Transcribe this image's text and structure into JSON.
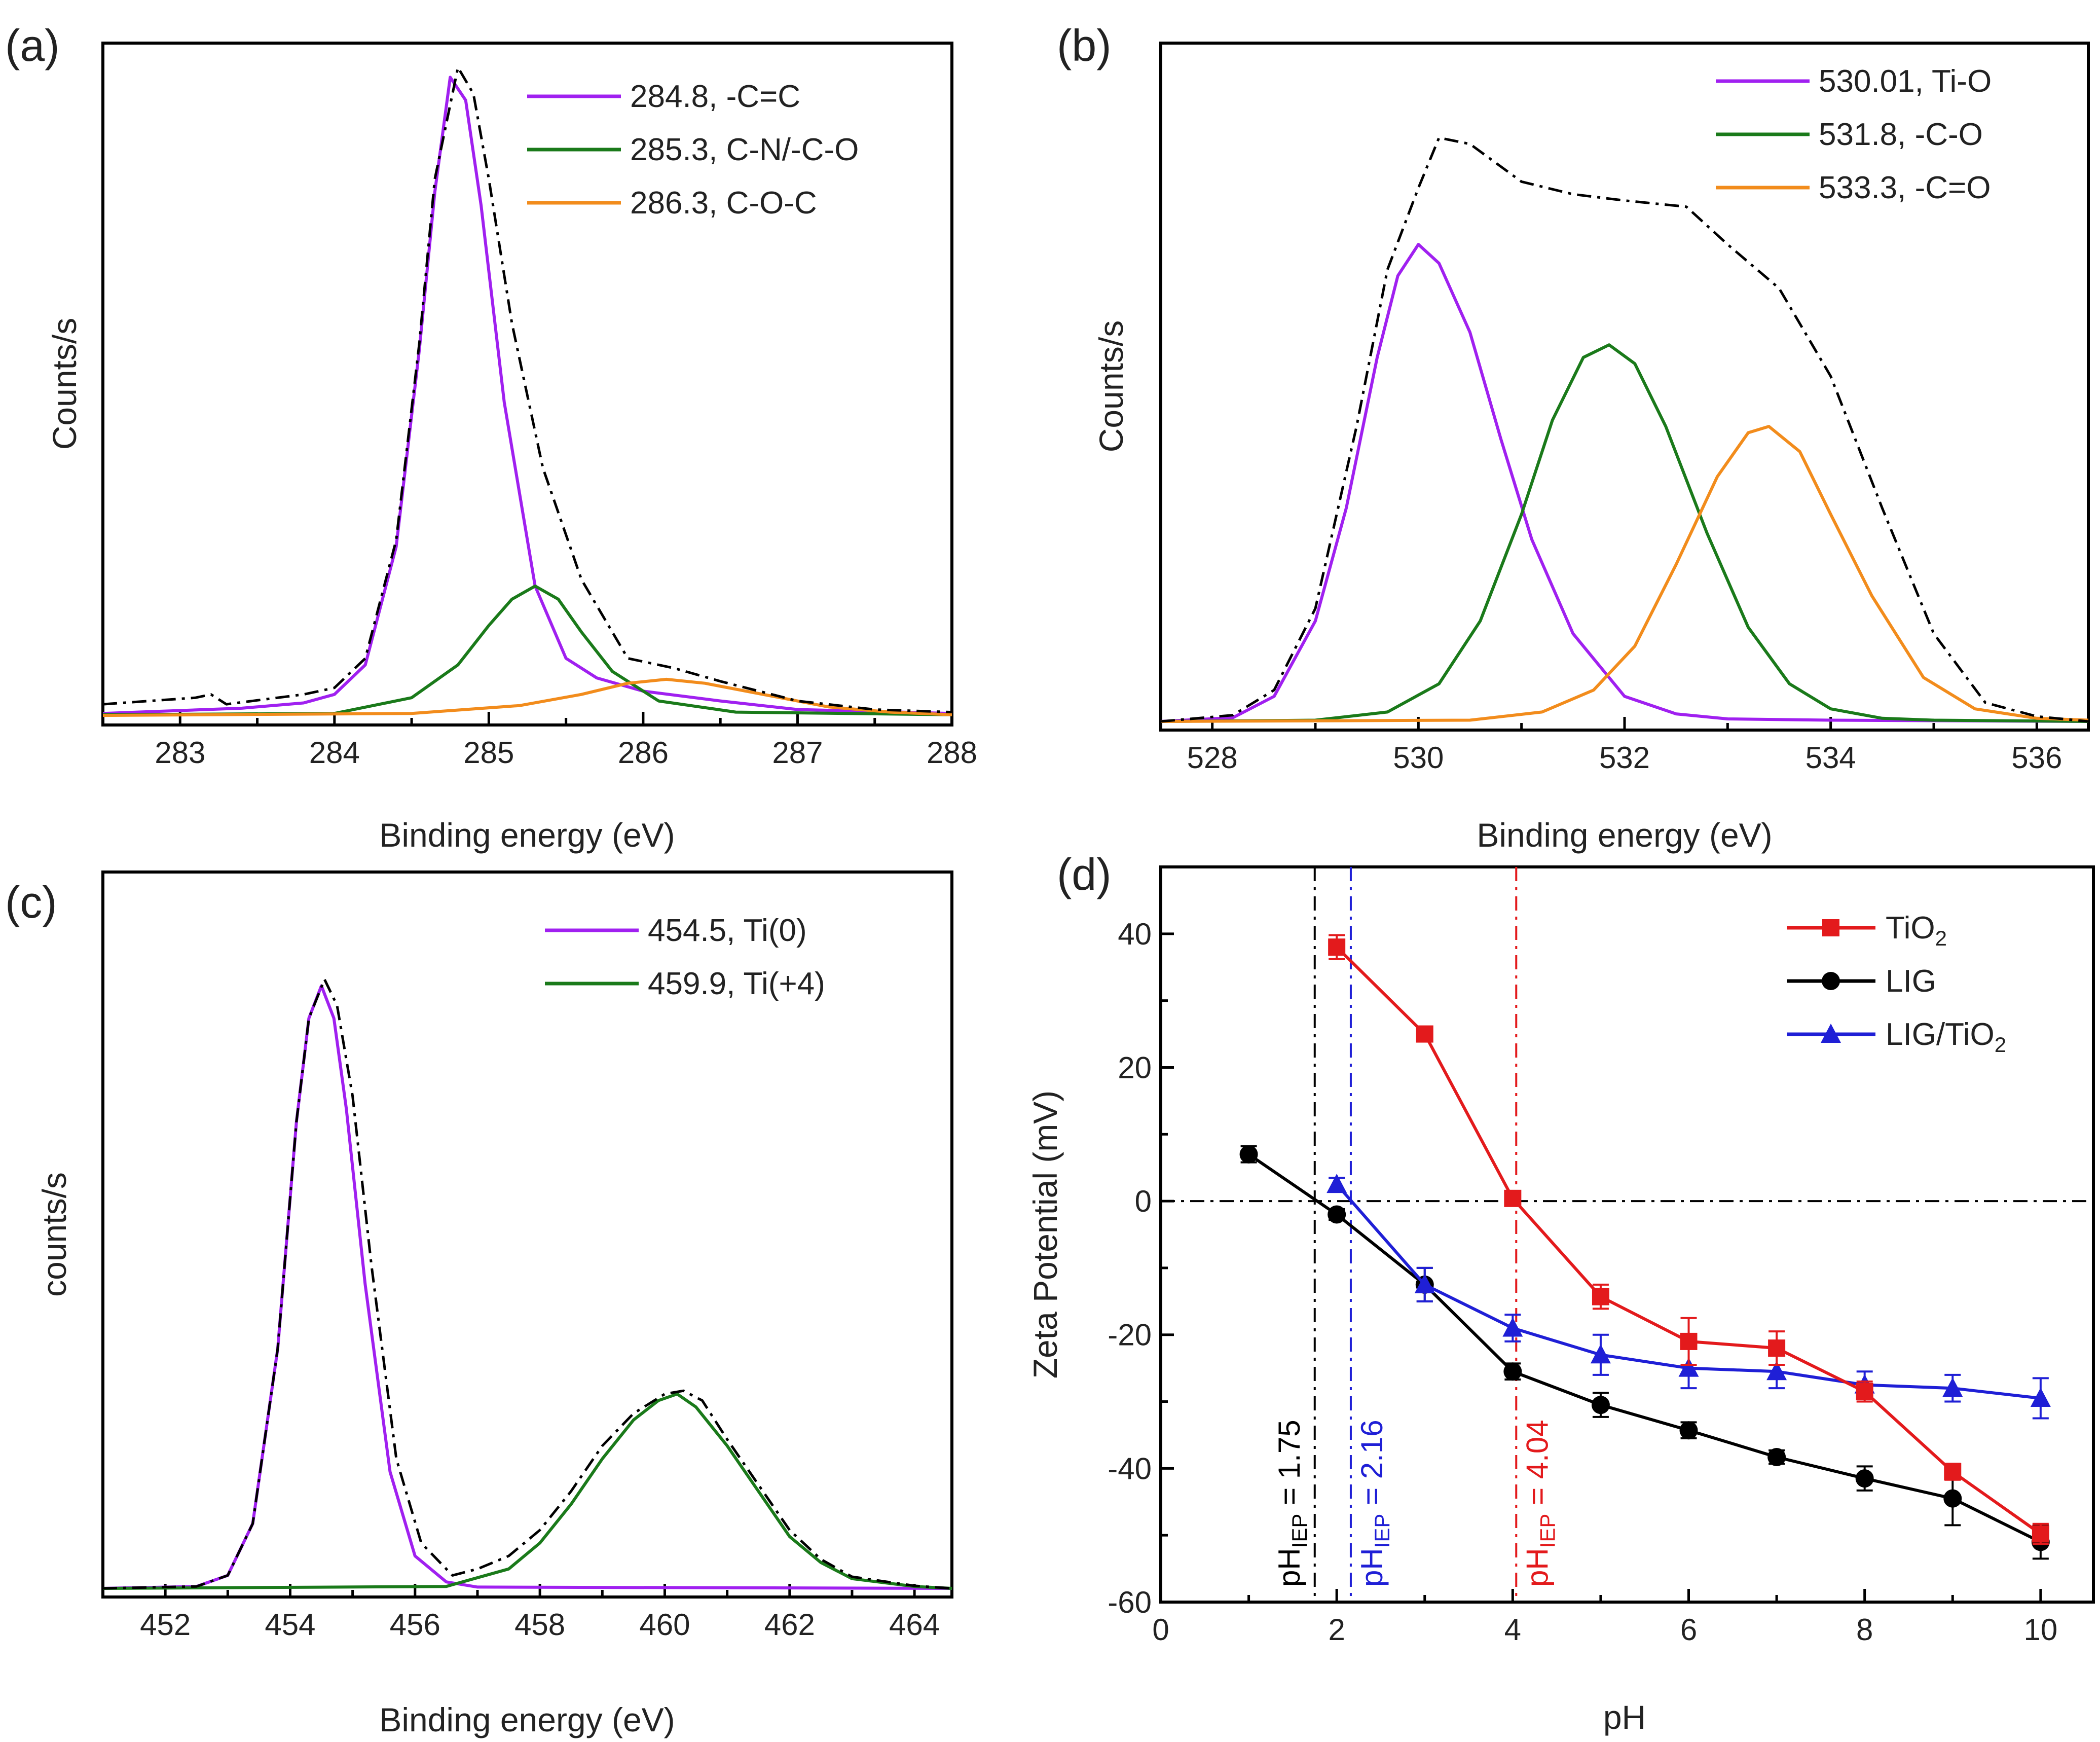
{
  "chart_data": [
    {
      "panel_label": "(a)",
      "type": "line",
      "xlabel": "Binding energy (eV)",
      "ylabel": "Counts/s",
      "xlim": [
        282.5,
        288
      ],
      "xticks": [
        283,
        284,
        285,
        286,
        287,
        288
      ],
      "ylim": [
        0,
        1
      ],
      "show_y_ticks": false,
      "legend_position": "top-right",
      "series": [
        {
          "name": "284.8, -C=C",
          "color": "#a020f0",
          "style": "solid",
          "legend": true,
          "x": [
            282.5,
            283.4,
            283.8,
            284.0,
            284.2,
            284.4,
            284.55,
            284.65,
            284.75,
            284.85,
            284.95,
            285.1,
            285.3,
            285.5,
            285.7,
            286.0,
            286.5,
            287.0,
            288.0
          ],
          "y": [
            0.006,
            0.014,
            0.022,
            0.035,
            0.08,
            0.26,
            0.56,
            0.8,
            0.975,
            0.94,
            0.78,
            0.48,
            0.2,
            0.09,
            0.06,
            0.04,
            0.025,
            0.012,
            0.006
          ]
        },
        {
          "name": "285.3, C-N/-C-O",
          "color": "#1a7a1a",
          "style": "solid",
          "legend": true,
          "x": [
            282.5,
            284.0,
            284.5,
            284.8,
            285.0,
            285.15,
            285.3,
            285.45,
            285.6,
            285.8,
            286.1,
            286.6,
            288.0
          ],
          "y": [
            0.004,
            0.006,
            0.03,
            0.08,
            0.14,
            0.18,
            0.2,
            0.18,
            0.13,
            0.07,
            0.025,
            0.008,
            0.004
          ]
        },
        {
          "name": "286.3, C-O-C",
          "color": "#f28c1c",
          "style": "solid",
          "legend": true,
          "x": [
            282.5,
            284.5,
            285.2,
            285.6,
            285.9,
            286.15,
            286.4,
            286.8,
            287.2,
            287.6,
            288.0
          ],
          "y": [
            0.003,
            0.006,
            0.018,
            0.035,
            0.052,
            0.058,
            0.052,
            0.034,
            0.016,
            0.008,
            0.004
          ]
        },
        {
          "name": "envelope",
          "color": "#000000",
          "style": "dashdot",
          "legend": false,
          "x": [
            282.5,
            283.1,
            283.2,
            283.3,
            283.8,
            284.0,
            284.2,
            284.4,
            284.55,
            284.65,
            284.8,
            284.9,
            285.0,
            285.15,
            285.35,
            285.6,
            285.9,
            286.2,
            286.5,
            287.0,
            287.5,
            288.0
          ],
          "y": [
            0.02,
            0.03,
            0.035,
            0.02,
            0.035,
            0.045,
            0.09,
            0.27,
            0.57,
            0.82,
            0.99,
            0.95,
            0.82,
            0.6,
            0.38,
            0.21,
            0.09,
            0.075,
            0.055,
            0.025,
            0.012,
            0.008
          ]
        }
      ]
    },
    {
      "panel_label": "(b)",
      "type": "line",
      "xlabel": "Binding energy (eV)",
      "ylabel": "Counts/s",
      "xlim": [
        527.5,
        536.5
      ],
      "xticks": [
        528,
        530,
        532,
        534,
        536
      ],
      "ylim": [
        0,
        1
      ],
      "show_y_ticks": false,
      "legend_position": "top-right",
      "series": [
        {
          "name": "530.01, Ti-O",
          "color": "#a020f0",
          "style": "solid",
          "legend": true,
          "x": [
            527.5,
            528.2,
            528.6,
            529.0,
            529.3,
            529.6,
            529.8,
            530.0,
            530.2,
            530.5,
            530.8,
            531.1,
            531.5,
            532.0,
            532.5,
            533.0,
            534.0,
            536.5
          ],
          "y": [
            0.0,
            0.006,
            0.04,
            0.16,
            0.34,
            0.58,
            0.71,
            0.76,
            0.73,
            0.62,
            0.45,
            0.29,
            0.14,
            0.04,
            0.012,
            0.004,
            0.002,
            0.0
          ]
        },
        {
          "name": "531.8, -C-O",
          "color": "#1a7a1a",
          "style": "solid",
          "legend": true,
          "x": [
            527.5,
            529.0,
            529.7,
            530.2,
            530.6,
            531.0,
            531.3,
            531.6,
            531.85,
            532.1,
            532.4,
            532.8,
            533.2,
            533.6,
            534.0,
            534.5,
            535.0,
            536.5
          ],
          "y": [
            0.0,
            0.002,
            0.015,
            0.06,
            0.16,
            0.33,
            0.48,
            0.58,
            0.6,
            0.57,
            0.47,
            0.3,
            0.15,
            0.06,
            0.02,
            0.005,
            0.002,
            0.0
          ]
        },
        {
          "name": "533.3, -C=O",
          "color": "#f28c1c",
          "style": "solid",
          "legend": true,
          "x": [
            527.5,
            530.5,
            531.2,
            531.7,
            532.1,
            532.5,
            532.9,
            533.2,
            533.4,
            533.7,
            534.0,
            534.4,
            534.9,
            535.4,
            536.0,
            536.5
          ],
          "y": [
            0.0,
            0.002,
            0.015,
            0.05,
            0.12,
            0.25,
            0.39,
            0.46,
            0.47,
            0.43,
            0.33,
            0.2,
            0.07,
            0.02,
            0.005,
            0.002
          ]
        },
        {
          "name": "envelope",
          "color": "#000000",
          "style": "dashdot",
          "legend": false,
          "x": [
            527.5,
            528.2,
            528.6,
            529.0,
            529.4,
            529.7,
            530.0,
            530.2,
            530.5,
            531.0,
            531.5,
            532.0,
            532.6,
            533.0,
            533.5,
            534.0,
            534.5,
            535.0,
            535.5,
            536.0,
            536.5
          ],
          "y": [
            0.0,
            0.01,
            0.05,
            0.18,
            0.47,
            0.72,
            0.85,
            0.93,
            0.92,
            0.86,
            0.84,
            0.83,
            0.82,
            0.76,
            0.69,
            0.55,
            0.34,
            0.14,
            0.03,
            0.008,
            0.0
          ]
        }
      ]
    },
    {
      "panel_label": "(c)",
      "type": "line",
      "xlabel": "Binding energy (eV)",
      "ylabel": "counts/s",
      "xlim": [
        451,
        464.6
      ],
      "xticks": [
        452,
        454,
        456,
        458,
        460,
        462,
        464
      ],
      "ylim": [
        0,
        1
      ],
      "show_y_ticks": false,
      "legend_position": "top-right",
      "series": [
        {
          "name": "454.5, Ti(0)",
          "color": "#a020f0",
          "style": "solid",
          "legend": true,
          "x": [
            451.0,
            452.5,
            453.0,
            453.4,
            453.8,
            454.1,
            454.3,
            454.5,
            454.7,
            454.9,
            455.2,
            455.6,
            456.0,
            456.5,
            457.0,
            464.6
          ],
          "y": [
            0.0,
            0.003,
            0.02,
            0.1,
            0.37,
            0.72,
            0.88,
            0.93,
            0.88,
            0.74,
            0.47,
            0.18,
            0.05,
            0.01,
            0.002,
            0.0
          ]
        },
        {
          "name": "459.9, Ti(+4)",
          "color": "#1a7a1a",
          "style": "solid",
          "legend": true,
          "x": [
            451.0,
            456.5,
            457.5,
            458.0,
            458.5,
            459.0,
            459.5,
            459.9,
            460.2,
            460.5,
            461.0,
            461.5,
            462.0,
            462.5,
            463.0,
            464.0,
            464.6
          ],
          "y": [
            0.0,
            0.003,
            0.03,
            0.07,
            0.13,
            0.2,
            0.26,
            0.29,
            0.3,
            0.28,
            0.22,
            0.15,
            0.08,
            0.04,
            0.015,
            0.003,
            0.0
          ]
        },
        {
          "name": "envelope",
          "color": "#000000",
          "style": "dashdot",
          "legend": false,
          "x": [
            451.0,
            452.5,
            453.0,
            453.4,
            453.8,
            454.1,
            454.3,
            454.55,
            454.75,
            455.0,
            455.3,
            455.7,
            456.1,
            456.6,
            457.0,
            457.5,
            458.0,
            458.5,
            459.0,
            459.5,
            460.0,
            460.3,
            460.6,
            461.0,
            461.5,
            462.0,
            462.5,
            463.0,
            464.0,
            464.6
          ],
          "y": [
            0.0,
            0.003,
            0.02,
            0.1,
            0.37,
            0.72,
            0.88,
            0.94,
            0.9,
            0.76,
            0.5,
            0.2,
            0.07,
            0.02,
            0.03,
            0.05,
            0.09,
            0.15,
            0.22,
            0.27,
            0.3,
            0.305,
            0.29,
            0.23,
            0.16,
            0.09,
            0.045,
            0.018,
            0.004,
            0.0
          ]
        }
      ]
    },
    {
      "panel_label": "(d)",
      "type": "line",
      "xlabel": "pH",
      "ylabel": "Zeta Potential (mV)",
      "xlim": [
        0,
        10.6
      ],
      "xticks": [
        0,
        2,
        4,
        6,
        8,
        10
      ],
      "ylim": [
        -60,
        50
      ],
      "yticks": [
        -60,
        -40,
        -20,
        0,
        20,
        40
      ],
      "show_y_ticks": true,
      "legend_position": "top-right",
      "hline": {
        "y": 0,
        "color": "#000000",
        "style": "dashdot"
      },
      "vlines": [
        {
          "x": 1.75,
          "color": "#000000",
          "style": "dashdot",
          "label_main": "pH",
          "label_sub": "IEP",
          "label_rest": " = 1.75"
        },
        {
          "x": 2.16,
          "color": "#1f1fd6",
          "style": "dashdot",
          "label_main": "pH",
          "label_sub": "IEP",
          "label_rest": " = 2.16"
        },
        {
          "x": 4.04,
          "color": "#e31a1c",
          "style": "dashdot",
          "label_main": "pH",
          "label_sub": "IEP",
          "label_rest": " = 4.04"
        }
      ],
      "series": [
        {
          "name": "TiO",
          "name_sub": "2",
          "color": "#e31a1c",
          "marker": "square",
          "x": [
            2,
            3,
            4,
            5,
            6,
            7,
            8,
            9,
            10
          ],
          "y": [
            38,
            25,
            0.4,
            -14.3,
            -21,
            -22,
            -28.5,
            -40.5,
            -49.8
          ],
          "err": [
            1.8,
            1.0,
            1.0,
            1.8,
            3.5,
            2.5,
            1.5,
            1.2,
            1.5
          ]
        },
        {
          "name": "LIG",
          "name_sub": "",
          "color": "#000000",
          "marker": "circle",
          "x": [
            1,
            2,
            3,
            4,
            5,
            6,
            7,
            8,
            9,
            10
          ],
          "y": [
            7,
            -2,
            -12.5,
            -25.5,
            -30.5,
            -34.3,
            -38.3,
            -41.5,
            -44.5,
            -51
          ],
          "err": [
            1.2,
            0.8,
            2.5,
            1.2,
            1.8,
            1.2,
            1.0,
            1.8,
            4.0,
            2.5
          ]
        },
        {
          "name": "LIG/TiO",
          "name_sub": "2",
          "color": "#1f1fd6",
          "marker": "triangle",
          "x": [
            2,
            3,
            4,
            5,
            6,
            7,
            8,
            9,
            10
          ],
          "y": [
            2.5,
            -12.5,
            -19,
            -23,
            -25,
            -25.5,
            -27.5,
            -28,
            -29.5
          ],
          "err": [
            1.0,
            2.5,
            2.0,
            3.0,
            3.0,
            2.5,
            2.0,
            2.0,
            3.0
          ]
        }
      ]
    }
  ]
}
